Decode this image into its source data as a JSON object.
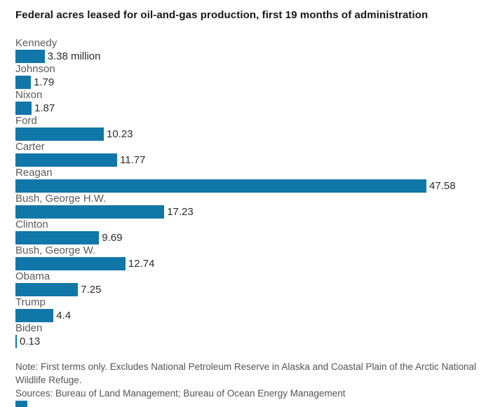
{
  "chart_data": {
    "type": "bar",
    "orientation": "horizontal",
    "title": "Federal acres leased for oil-and-gas production, first 19 months of administration",
    "categories": [
      "Kennedy",
      "Johnson",
      "Nixon",
      "Ford",
      "Carter",
      "Reagan",
      "Bush, George H.W.",
      "Clinton",
      "Bush, George W.",
      "Obama",
      "Trump",
      "Biden"
    ],
    "values": [
      3.38,
      1.79,
      1.87,
      10.23,
      11.77,
      47.58,
      17.23,
      9.69,
      12.74,
      7.25,
      4.4,
      0.13
    ],
    "value_labels": [
      "3.38 million",
      "1.79",
      "1.87",
      "10.23",
      "11.77",
      "47.58",
      "17.23",
      "9.69",
      "12.74",
      "7.25",
      "4.4",
      "0.13"
    ],
    "unit": "million acres",
    "xlim": [
      0,
      47.58
    ],
    "bar_color": "#1177a9",
    "grid": false,
    "legend": false,
    "layout": "category label above each bar, value label at right end of bar"
  },
  "footer": {
    "note_line": "Note: First terms only. Excludes National Petroleum Reserve in Alaska and Coastal Plain of the Arctic National Wildlife Refuge.",
    "sources_line": "Sources: Bureau of Land Management; Bureau of Ocean Energy Management"
  }
}
